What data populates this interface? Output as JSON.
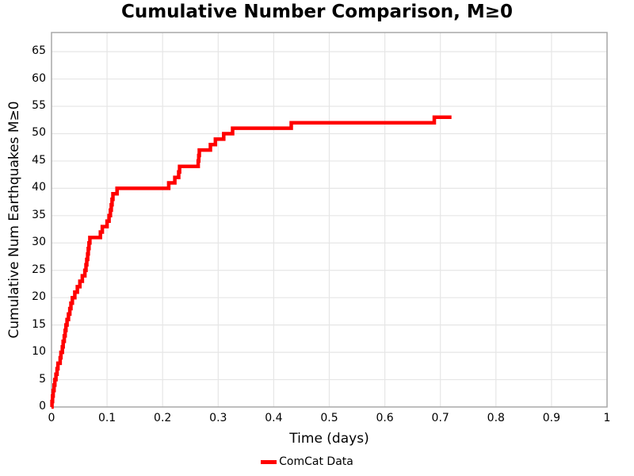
{
  "title": "Cumulative Number Comparison, M≥0",
  "colors": {
    "line": "#ff0000",
    "grid": "#e6e6e6",
    "plot_border": "#a8a8a8",
    "background": "#ffffff",
    "text": "#000000"
  },
  "legend": {
    "entries": [
      {
        "label": "ComCat Data",
        "color": "#ff0000"
      }
    ],
    "position": "bottom-center"
  },
  "chart_data": {
    "type": "line",
    "drawstyle": "steps-post",
    "title": "Cumulative Number Comparison, M≥0",
    "xlabel": "Time (days)",
    "ylabel": "Cumulative Num Earthquakes M≥0",
    "xlim": [
      0,
      1
    ],
    "ylim": [
      0,
      68.5
    ],
    "grid": true,
    "xticks": {
      "values": [
        0,
        0.1,
        0.2,
        0.3,
        0.4,
        0.5,
        0.6,
        0.7,
        0.8,
        0.9,
        1.0
      ],
      "labels": [
        "0",
        "0.1",
        "0.2",
        "0.3",
        "0.4",
        "0.5",
        "0.6",
        "0.7",
        "0.8",
        "0.9",
        "1"
      ]
    },
    "yticks": {
      "values": [
        0,
        5,
        10,
        15,
        20,
        25,
        30,
        35,
        40,
        45,
        50,
        55,
        60,
        65
      ],
      "labels": [
        "0",
        "5",
        "10",
        "15",
        "20",
        "25",
        "30",
        "35",
        "40",
        "45",
        "50",
        "55",
        "60",
        "65"
      ]
    },
    "series": [
      {
        "name": "ComCat Data",
        "color": "#ff0000",
        "linewidth": 4.5,
        "start": [
          0,
          0
        ],
        "points": [
          [
            0.0008,
            1
          ],
          [
            0.0018,
            2
          ],
          [
            0.003,
            3
          ],
          [
            0.0045,
            4
          ],
          [
            0.006,
            5
          ],
          [
            0.008,
            6
          ],
          [
            0.01,
            7
          ],
          [
            0.0115,
            8
          ],
          [
            0.0155,
            9
          ],
          [
            0.017,
            10
          ],
          [
            0.0195,
            11
          ],
          [
            0.021,
            12
          ],
          [
            0.023,
            13
          ],
          [
            0.0245,
            14
          ],
          [
            0.026,
            15
          ],
          [
            0.028,
            16
          ],
          [
            0.0305,
            17
          ],
          [
            0.033,
            18
          ],
          [
            0.035,
            19
          ],
          [
            0.0375,
            20
          ],
          [
            0.042,
            21
          ],
          [
            0.0465,
            22
          ],
          [
            0.051,
            23
          ],
          [
            0.0555,
            24
          ],
          [
            0.06,
            25
          ],
          [
            0.062,
            26
          ],
          [
            0.0635,
            27
          ],
          [
            0.065,
            28
          ],
          [
            0.0662,
            29
          ],
          [
            0.0675,
            30
          ],
          [
            0.069,
            31
          ],
          [
            0.088,
            32
          ],
          [
            0.0915,
            33
          ],
          [
            0.1,
            34
          ],
          [
            0.1035,
            35
          ],
          [
            0.106,
            36
          ],
          [
            0.1075,
            37
          ],
          [
            0.109,
            38
          ],
          [
            0.1105,
            39
          ],
          [
            0.118,
            40
          ],
          [
            0.211,
            41
          ],
          [
            0.222,
            42
          ],
          [
            0.229,
            43
          ],
          [
            0.2305,
            44
          ],
          [
            0.264,
            45
          ],
          [
            0.265,
            46
          ],
          [
            0.266,
            47
          ],
          [
            0.286,
            48
          ],
          [
            0.295,
            49
          ],
          [
            0.31,
            50
          ],
          [
            0.326,
            51
          ],
          [
            0.4315,
            52
          ],
          [
            0.689,
            53
          ]
        ],
        "end": [
          0.72,
          53
        ]
      }
    ]
  }
}
